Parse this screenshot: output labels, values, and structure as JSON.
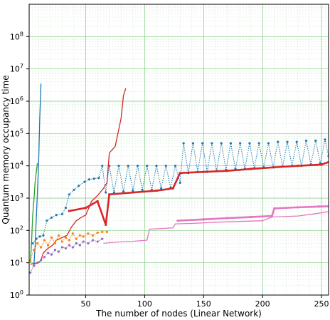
{
  "chart_data": {
    "type": "line",
    "xlabel": "The number of nodes (Linear Network)",
    "ylabel": "Quantum memory occupancy time",
    "xlim": [
      2,
      256
    ],
    "ylim_log10": [
      0,
      9
    ],
    "yscale": "log",
    "grid": true,
    "x_ticks": [
      {
        "value": 50,
        "label": "50"
      },
      {
        "value": 100,
        "label": "100"
      },
      {
        "value": 150,
        "label": "150"
      },
      {
        "value": 200,
        "label": "200"
      },
      {
        "value": 250,
        "label": "250"
      }
    ],
    "y_ticks": [
      {
        "exp": 0,
        "label": "10",
        "sup": "0"
      },
      {
        "exp": 1,
        "label": "10",
        "sup": "1"
      },
      {
        "exp": 2,
        "label": "10",
        "sup": "2"
      },
      {
        "exp": 3,
        "label": "10",
        "sup": "3"
      },
      {
        "exp": 4,
        "label": "10",
        "sup": "4"
      },
      {
        "exp": 5,
        "label": "10",
        "sup": "5"
      },
      {
        "exp": 6,
        "label": "10",
        "sup": "6"
      },
      {
        "exp": 7,
        "label": "10",
        "sup": "7"
      },
      {
        "exp": 8,
        "label": "10",
        "sup": "8"
      }
    ],
    "series": [
      {
        "color": "#2ca02c",
        "style": "solid",
        "points": [
          [
            3,
            10
          ],
          [
            4,
            40
          ],
          [
            5,
            300
          ],
          [
            6,
            800
          ],
          [
            7,
            3000
          ],
          [
            8,
            6000
          ],
          [
            9,
            12000
          ]
        ]
      },
      {
        "color": "#1f77b4",
        "style": "solid",
        "points": [
          [
            6,
            8
          ],
          [
            7,
            30
          ],
          [
            8,
            200
          ],
          [
            9,
            1500
          ],
          [
            10,
            12000
          ],
          [
            11,
            300000
          ],
          [
            12,
            3500000
          ]
        ]
      },
      {
        "color": "#1f77b4",
        "style": "dotted-markers",
        "points": [
          [
            5,
            40
          ],
          [
            8,
            55
          ],
          [
            11,
            65
          ],
          [
            14,
            70
          ],
          [
            17,
            200
          ],
          [
            21,
            250
          ],
          [
            25,
            300
          ],
          [
            30,
            320
          ],
          [
            33,
            500
          ],
          [
            36,
            1300
          ],
          [
            40,
            1800
          ],
          [
            44,
            2400
          ],
          [
            49,
            3200
          ],
          [
            53,
            3800
          ],
          [
            57,
            4000
          ],
          [
            61,
            4200
          ],
          [
            64,
            10000
          ],
          [
            67,
            1500
          ],
          [
            70,
            10000
          ],
          [
            74,
            1500
          ],
          [
            78,
            10000
          ],
          [
            82,
            1600
          ],
          [
            86,
            10000
          ],
          [
            90,
            1700
          ],
          [
            94,
            10000
          ],
          [
            98,
            1800
          ],
          [
            102,
            10000
          ],
          [
            106,
            1800
          ],
          [
            110,
            10000
          ],
          [
            114,
            2000
          ],
          [
            118,
            10000
          ],
          [
            122,
            2100
          ],
          [
            126,
            10000
          ],
          [
            130,
            3000
          ],
          [
            133,
            50000
          ],
          [
            137,
            6000
          ],
          [
            141,
            50000
          ],
          [
            145,
            6500
          ],
          [
            149,
            50000
          ],
          [
            153,
            6500
          ],
          [
            157,
            50000
          ],
          [
            161,
            7000
          ],
          [
            165,
            50000
          ],
          [
            169,
            7500
          ],
          [
            173,
            50000
          ],
          [
            177,
            8000
          ],
          [
            181,
            50000
          ],
          [
            185,
            8000
          ],
          [
            189,
            50000
          ],
          [
            193,
            8500
          ],
          [
            197,
            50000
          ],
          [
            201,
            9000
          ],
          [
            205,
            50000
          ],
          [
            209,
            9000
          ],
          [
            213,
            55000
          ],
          [
            217,
            9500
          ],
          [
            221,
            55000
          ],
          [
            225,
            10000
          ],
          [
            229,
            55000
          ],
          [
            233,
            10000
          ],
          [
            237,
            60000
          ],
          [
            241,
            11000
          ],
          [
            245,
            60000
          ],
          [
            249,
            12000
          ],
          [
            253,
            65000
          ],
          [
            256,
            20000
          ]
        ]
      },
      {
        "color": "#d62728",
        "style": "solid",
        "points": [
          [
            3,
            9
          ],
          [
            10,
            10
          ],
          [
            12,
            12
          ],
          [
            14,
            20
          ],
          [
            18,
            28
          ],
          [
            22,
            35
          ],
          [
            25,
            50
          ],
          [
            30,
            60
          ],
          [
            34,
            70
          ],
          [
            38,
            130
          ],
          [
            42,
            200
          ],
          [
            46,
            250
          ],
          [
            50,
            300
          ],
          [
            55,
            800
          ],
          [
            60,
            1200
          ],
          [
            65,
            2000
          ],
          [
            68,
            3000
          ],
          [
            70,
            25000
          ],
          [
            75,
            40000
          ],
          [
            80,
            300000
          ],
          [
            82,
            1500000
          ],
          [
            84,
            2500000
          ]
        ]
      },
      {
        "color": "#d62728",
        "style": "markers",
        "points": [
          [
            36,
            400
          ],
          [
            50,
            500
          ],
          [
            60,
            800
          ],
          [
            67,
            150
          ],
          [
            70,
            1300
          ],
          [
            90,
            1500
          ],
          [
            110,
            1700
          ],
          [
            124,
            2000
          ],
          [
            130,
            6000
          ],
          [
            150,
            6500
          ],
          [
            170,
            7000
          ],
          [
            190,
            8000
          ],
          [
            210,
            9000
          ],
          [
            230,
            10000
          ],
          [
            250,
            11000
          ],
          [
            256,
            13000
          ]
        ]
      },
      {
        "color": "#ff7f0e",
        "style": "dotted-markers",
        "points": [
          [
            3,
            12
          ],
          [
            6,
            25
          ],
          [
            9,
            40
          ],
          [
            12,
            30
          ],
          [
            15,
            50
          ],
          [
            18,
            35
          ],
          [
            21,
            60
          ],
          [
            24,
            40
          ],
          [
            27,
            70
          ],
          [
            30,
            45
          ],
          [
            33,
            60
          ],
          [
            36,
            50
          ],
          [
            39,
            80
          ],
          [
            42,
            55
          ],
          [
            45,
            70
          ],
          [
            48,
            65
          ],
          [
            52,
            80
          ],
          [
            56,
            70
          ],
          [
            60,
            85
          ],
          [
            64,
            90
          ],
          [
            68,
            90
          ]
        ]
      },
      {
        "color": "#9467bd",
        "style": "dotted-markers",
        "points": [
          [
            3,
            5
          ],
          [
            6,
            8
          ],
          [
            9,
            10
          ],
          [
            12,
            12
          ],
          [
            15,
            15
          ],
          [
            18,
            20
          ],
          [
            21,
            18
          ],
          [
            24,
            25
          ],
          [
            27,
            22
          ],
          [
            30,
            30
          ],
          [
            33,
            28
          ],
          [
            36,
            35
          ],
          [
            39,
            30
          ],
          [
            42,
            40
          ],
          [
            45,
            35
          ],
          [
            48,
            45
          ],
          [
            52,
            40
          ],
          [
            56,
            50
          ],
          [
            60,
            45
          ],
          [
            64,
            55
          ]
        ]
      },
      {
        "color": "#e377c2",
        "style": "solid",
        "points": [
          [
            65,
            40
          ],
          [
            75,
            43
          ],
          [
            90,
            46
          ],
          [
            102,
            50
          ],
          [
            104,
            110
          ],
          [
            115,
            115
          ],
          [
            124,
            120
          ],
          [
            126,
            160
          ],
          [
            140,
            165
          ],
          [
            160,
            180
          ],
          [
            200,
            200
          ],
          [
            208,
            260
          ],
          [
            230,
            280
          ],
          [
            245,
            330
          ],
          [
            256,
            380
          ]
        ]
      },
      {
        "color": "#e377c2",
        "style": "markers",
        "points": [
          [
            128,
            200
          ],
          [
            150,
            220
          ],
          [
            170,
            240
          ],
          [
            190,
            260
          ],
          [
            208,
            280
          ],
          [
            210,
            480
          ],
          [
            230,
            520
          ],
          [
            248,
            550
          ],
          [
            256,
            560
          ]
        ]
      }
    ]
  }
}
